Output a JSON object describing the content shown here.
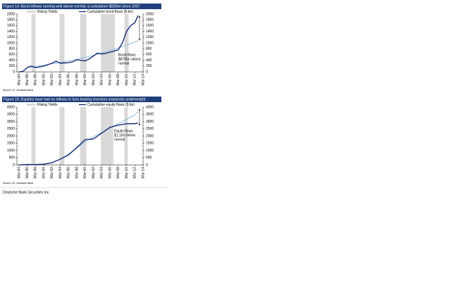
{
  "chart_data": [
    {
      "type": "line",
      "title": "Figure 14: Bond inflows running well above normal; a cumulative $835bn since 2007",
      "source": "Source: ICI, Deutsche Bank",
      "annotation": [
        "Bond flows",
        "$870bn above",
        "normal"
      ],
      "shaded": {
        "name": "Rising Yields",
        "color": "#d9d9d9",
        "ranges": [
          [
            1987,
            1988
          ],
          [
            1993.8,
            1995
          ],
          [
            1998.8,
            2000.3
          ],
          [
            2003.8,
            2007.2
          ],
          [
            2009.5,
            2010.5
          ]
        ]
      },
      "x": [
        1984,
        1985,
        1986,
        1987,
        1988,
        1989,
        1990,
        1991,
        1992,
        1993,
        1994,
        1995,
        1996,
        1997,
        1998,
        1999,
        2000,
        2001,
        2002,
        2003,
        2004,
        2005,
        2006,
        2007,
        2008,
        2009,
        2010,
        2011,
        2012,
        2012.8
      ],
      "series": [
        {
          "name": "Cumulative bond flows ($ bn)",
          "color": "#0b1f6b",
          "values": [
            0,
            20,
            150,
            200,
            150,
            170,
            200,
            250,
            300,
            370,
            300,
            310,
            320,
            350,
            420,
            400,
            380,
            450,
            550,
            650,
            620,
            640,
            680,
            720,
            760,
            1000,
            1400,
            1600,
            1700,
            1950
          ]
        },
        {
          "color": "#7fb8e0",
          "values": [
            null,
            null,
            150,
            170,
            190,
            210,
            230,
            255,
            280,
            305,
            330,
            355,
            380,
            410,
            440,
            470,
            500,
            535,
            570,
            610,
            650,
            690,
            735,
            780,
            830,
            880,
            930,
            980,
            1030,
            1080
          ]
        }
      ],
      "xlim": [
        1983.5,
        2014
      ],
      "xticks": [
        {
          "value": 1984,
          "label": "Mar-84"
        },
        {
          "value": 1986,
          "label": "Mar-86"
        },
        {
          "value": 1988,
          "label": "Mar-88"
        },
        {
          "value": 1990,
          "label": "Mar-90"
        },
        {
          "value": 1992,
          "label": "Mar-92"
        },
        {
          "value": 1994,
          "label": "Mar-94"
        },
        {
          "value": 1996,
          "label": "Mar-96"
        },
        {
          "value": 1998,
          "label": "Mar-98"
        },
        {
          "value": 2000,
          "label": "Mar-00"
        },
        {
          "value": 2002,
          "label": "Mar-02"
        },
        {
          "value": 2004,
          "label": "Mar-04"
        },
        {
          "value": 2006,
          "label": "Mar-06"
        },
        {
          "value": 2008,
          "label": "Mar-08"
        },
        {
          "value": 2010,
          "label": "Mar-10"
        },
        {
          "value": 2012,
          "label": "Mar-12"
        },
        {
          "value": 2014,
          "label": "Mar-14"
        }
      ],
      "ylim": [
        0,
        2000
      ],
      "yticks": [
        0,
        200,
        400,
        600,
        800,
        1000,
        1200,
        1400,
        1600,
        1800,
        2000
      ],
      "y2lim": [
        0,
        2000
      ],
      "y2ticks": [
        0,
        200,
        400,
        600,
        800,
        1000,
        1200,
        1400,
        1600,
        1800,
        2000
      ],
      "legend": "top"
    },
    {
      "type": "line",
      "title": "Figure 15: Equities have had no inflows in 5yrs leaving investors massively underweight",
      "source": "Source: ICI, Deutsche Bank",
      "annotation": [
        "Equity flows",
        "$1.1trn below",
        "normal"
      ],
      "shaded": {
        "name": "Rising Yields",
        "color": "#d9d9d9",
        "ranges": [
          [
            1987,
            1988
          ],
          [
            1993.8,
            1995
          ],
          [
            1998.8,
            2000.3
          ],
          [
            2003.8,
            2006.8
          ],
          [
            2009.5,
            2010.3
          ]
        ]
      },
      "x": [
        1984,
        1986,
        1988,
        1990,
        1992,
        1994,
        1996,
        1998,
        2000,
        2002,
        2004,
        2006,
        2008,
        2010,
        2012,
        2012.8
      ],
      "series": [
        {
          "name": "Cumulative equity flows ($ bn)",
          "color": "#0b1f6b",
          "values": [
            0,
            30,
            20,
            50,
            150,
            400,
            700,
            1200,
            1750,
            1800,
            2200,
            2600,
            2750,
            2850,
            2850,
            2900
          ]
        },
        {
          "color": "#7fb8e0",
          "values": [
            null,
            30,
            40,
            70,
            170,
            400,
            750,
            1150,
            1600,
            1950,
            2250,
            2550,
            2850,
            3150,
            3450,
            3700
          ]
        }
      ],
      "xlim": [
        1983.5,
        2014
      ],
      "xticks": [
        {
          "value": 1984,
          "label": "Mar-84"
        },
        {
          "value": 1986,
          "label": "Mar-86"
        },
        {
          "value": 1988,
          "label": "Mar-88"
        },
        {
          "value": 1990,
          "label": "Mar-90"
        },
        {
          "value": 1992,
          "label": "Mar-92"
        },
        {
          "value": 1994,
          "label": "Mar-94"
        },
        {
          "value": 1996,
          "label": "Mar-96"
        },
        {
          "value": 1998,
          "label": "Mar-98"
        },
        {
          "value": 2000,
          "label": "Mar-00"
        },
        {
          "value": 2002,
          "label": "Mar-02"
        },
        {
          "value": 2004,
          "label": "Mar-04"
        },
        {
          "value": 2006,
          "label": "Mar-06"
        },
        {
          "value": 2008,
          "label": "Mar-08"
        },
        {
          "value": 2010,
          "label": "Mar-10"
        },
        {
          "value": 2012,
          "label": "Mar-12"
        },
        {
          "value": 2014,
          "label": "Mar-14"
        }
      ],
      "ylim": [
        0,
        4000
      ],
      "yticks": [
        0,
        500,
        1000,
        1500,
        2000,
        2500,
        3000,
        3500,
        4000
      ],
      "y2lim": [
        0,
        4000
      ],
      "y2ticks": [
        0,
        500,
        1000,
        1500,
        2000,
        2500,
        3000,
        3500,
        4000
      ],
      "legend": "top"
    }
  ],
  "footer": "Deutsche Bank Securities Inc."
}
